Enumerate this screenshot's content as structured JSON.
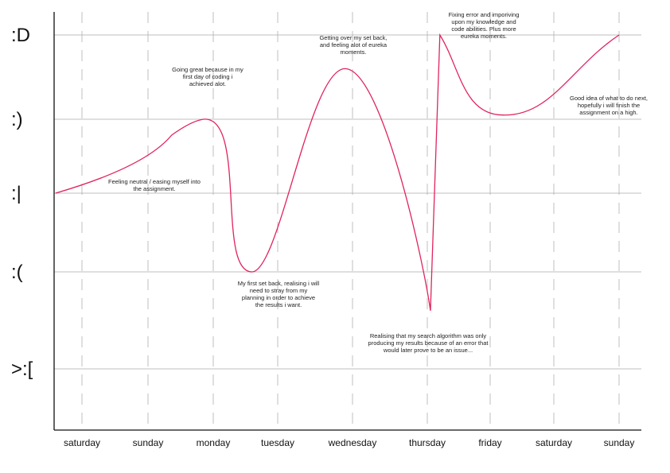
{
  "chart_data": {
    "type": "line",
    "y_levels": [
      ":D",
      ":)",
      ":|",
      ":(",
      ">:["
    ],
    "categories": [
      "saturday",
      "sunday",
      "monday",
      "tuesday",
      "wednesday",
      "thursday",
      "friday",
      "saturday",
      "sunday"
    ],
    "series_color": "#e0245e",
    "grid": true,
    "points": [
      {
        "x": -0.4,
        "y": 2
      },
      {
        "x": 1.85,
        "y": 3
      },
      {
        "x": 2.6,
        "y": 1
      },
      {
        "x": 3.9,
        "y": 3.6
      },
      {
        "x": 5.05,
        "y": 0.6
      },
      {
        "x": 5.2,
        "y": 4
      },
      {
        "x": 6.2,
        "y": 3.05
      },
      {
        "x": 8.0,
        "y": 4
      }
    ],
    "annotations": [
      {
        "key": "a1",
        "lines": [
          "Feeling neutral / easing myself into",
          "the assignment."
        ]
      },
      {
        "key": "a2",
        "lines": [
          "Going great because in my",
          "first day of coding i",
          "achieved alot."
        ]
      },
      {
        "key": "a3",
        "lines": [
          "My first set back, realising i will",
          "need to stray from my",
          "planning in order to achieve",
          "the results i want."
        ]
      },
      {
        "key": "a4",
        "lines": [
          "Getting over my set back,",
          "and feeling alot of eureka",
          "moments."
        ]
      },
      {
        "key": "a5",
        "lines": [
          "Realising that my search algorithm was only",
          "producing my results because of an error that",
          "would later prove to be an issue..."
        ]
      },
      {
        "key": "a6",
        "lines": [
          "Fixing error and imporiving",
          "upon my knowledge and",
          "code abilities. Plus more",
          "eureka moments."
        ]
      },
      {
        "key": "a7",
        "lines": [
          "Good idea of what to do next,",
          "hopefully i will finish the",
          "assignment on a high."
        ]
      }
    ]
  }
}
